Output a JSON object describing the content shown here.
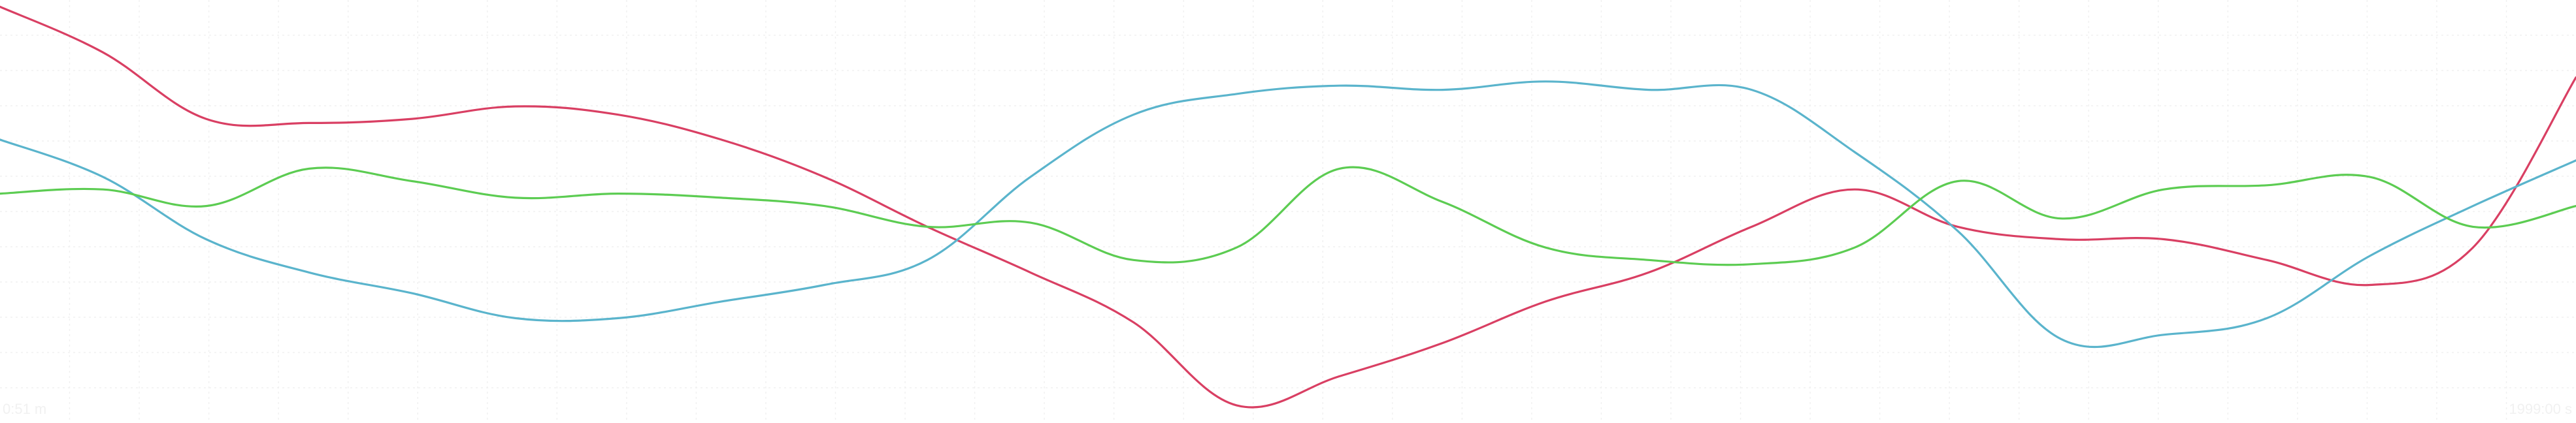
{
  "chart_data": {
    "type": "line",
    "title": "",
    "xlabel": "",
    "ylabel": "",
    "grid": true,
    "ylim": [
      0,
      100
    ],
    "x": [
      0,
      4,
      8,
      12,
      16,
      20,
      24,
      28,
      32,
      36,
      40,
      44,
      48,
      52,
      56,
      60,
      64,
      68,
      72,
      76,
      80,
      84,
      88,
      92,
      96,
      100
    ],
    "x_tick_labels": [
      "0:51 m",
      "1999:00 s"
    ],
    "series": [
      {
        "color": "#d93f63",
        "values": [
          99,
          88,
          72,
          71,
          72,
          75,
          73,
          67,
          58,
          46,
          35,
          23,
          3,
          10,
          18,
          28,
          35,
          46,
          55,
          46,
          43,
          43,
          38,
          32,
          41,
          82
        ]
      },
      {
        "color": "#5ab4cc",
        "values": [
          67,
          58,
          43,
          35,
          30,
          24,
          24,
          28,
          32,
          38,
          58,
          73,
          78,
          80,
          79,
          81,
          79,
          79,
          64,
          45,
          19,
          20,
          24,
          39,
          51,
          62
        ]
      },
      {
        "color": "#5ccc52",
        "values": [
          54,
          55,
          51,
          60,
          57,
          53,
          54,
          53,
          51,
          46,
          47,
          38,
          41,
          60,
          52,
          41,
          38,
          37,
          41,
          57,
          48,
          55,
          56,
          58,
          46,
          51
        ]
      }
    ]
  }
}
